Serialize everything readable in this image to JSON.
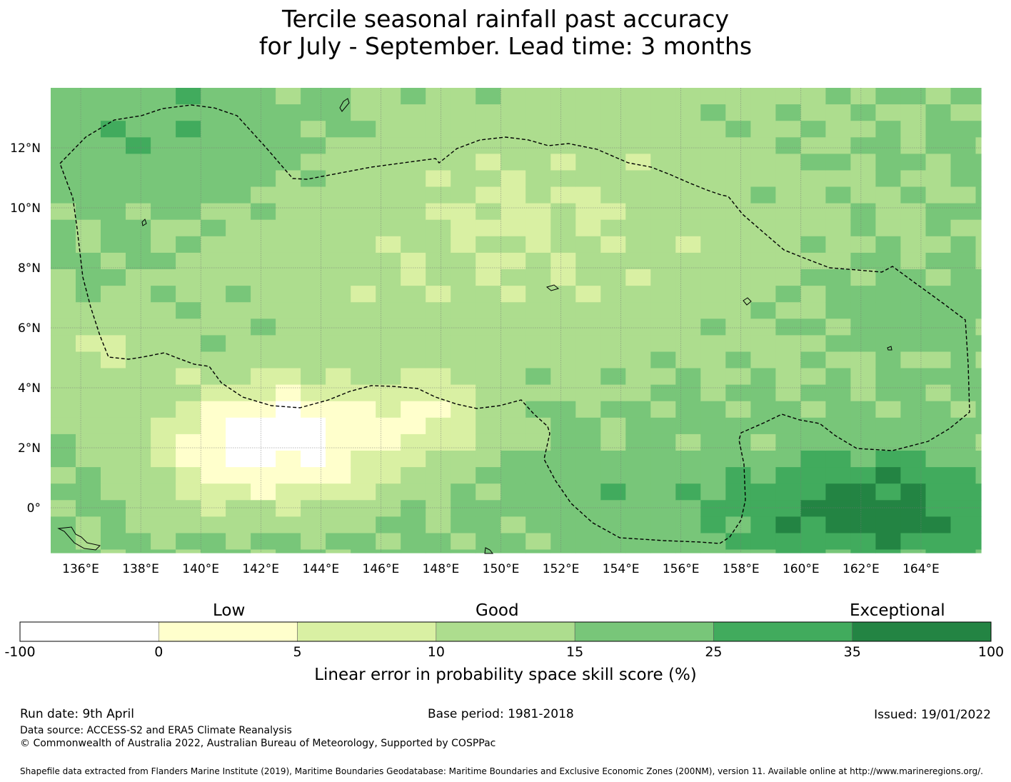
{
  "title_line1": "Tercile seasonal rainfall past accuracy",
  "title_line2": "for July - September. Lead time: 3 months",
  "map": {
    "lon_range": [
      135,
      166
    ],
    "lat_range": [
      -1.5,
      14
    ],
    "lon_ticks": [
      "136°E",
      "138°E",
      "140°E",
      "142°E",
      "144°E",
      "146°E",
      "148°E",
      "150°E",
      "152°E",
      "154°E",
      "156°E",
      "158°E",
      "160°E",
      "162°E",
      "164°E"
    ],
    "lat_ticks": [
      "12°N",
      "10°N",
      "8°N",
      "6°N",
      "4°N",
      "2°N",
      "0°"
    ],
    "grid": "on",
    "eez_boundary": "dashed outline around the Federated States of Micronesia",
    "skill_pattern_note": "White (no skill) in the south-west near the equator; darkest green (exceptional) in the south-east"
  },
  "legend": {
    "categories": [
      "Low",
      "Good",
      "Exceptional"
    ],
    "bins": [
      {
        "from": "-100",
        "to": "0",
        "color": "#ffffff"
      },
      {
        "from": "0",
        "to": "5",
        "color": "#ffffcc"
      },
      {
        "from": "5",
        "to": "10",
        "color": "#d9f0a3"
      },
      {
        "from": "10",
        "to": "15",
        "color": "#addd8e"
      },
      {
        "from": "15",
        "to": "25",
        "color": "#78c679"
      },
      {
        "from": "25",
        "to": "35",
        "color": "#41ab5d"
      },
      {
        "from": "35",
        "to": "100",
        "color": "#238443"
      }
    ],
    "tick_labels": [
      "-100",
      "0",
      "5",
      "10",
      "15",
      "25",
      "35",
      "100"
    ],
    "title": "Linear error in probability space skill score (%)"
  },
  "footer": {
    "run_date": "Run date: 9th April",
    "base_period": "Base period: 1981-2018",
    "issued": "Issued: 19/01/2022",
    "data_source": "Data source: ACCESS-S2 and ERA5 Climate Reanalysis",
    "copyright": "© Commonwealth of Australia 2022, Australian Bureau of Meteorology, Supported by COSPPac",
    "shapefile": "Shapefile data extracted from Flanders Marine Institute (2019), Maritime Boundaries Geodatabase: Maritime Boundaries and Exclusive Economic Zones (200NM), version 11. Available online at http://www.marineregions.org/."
  }
}
